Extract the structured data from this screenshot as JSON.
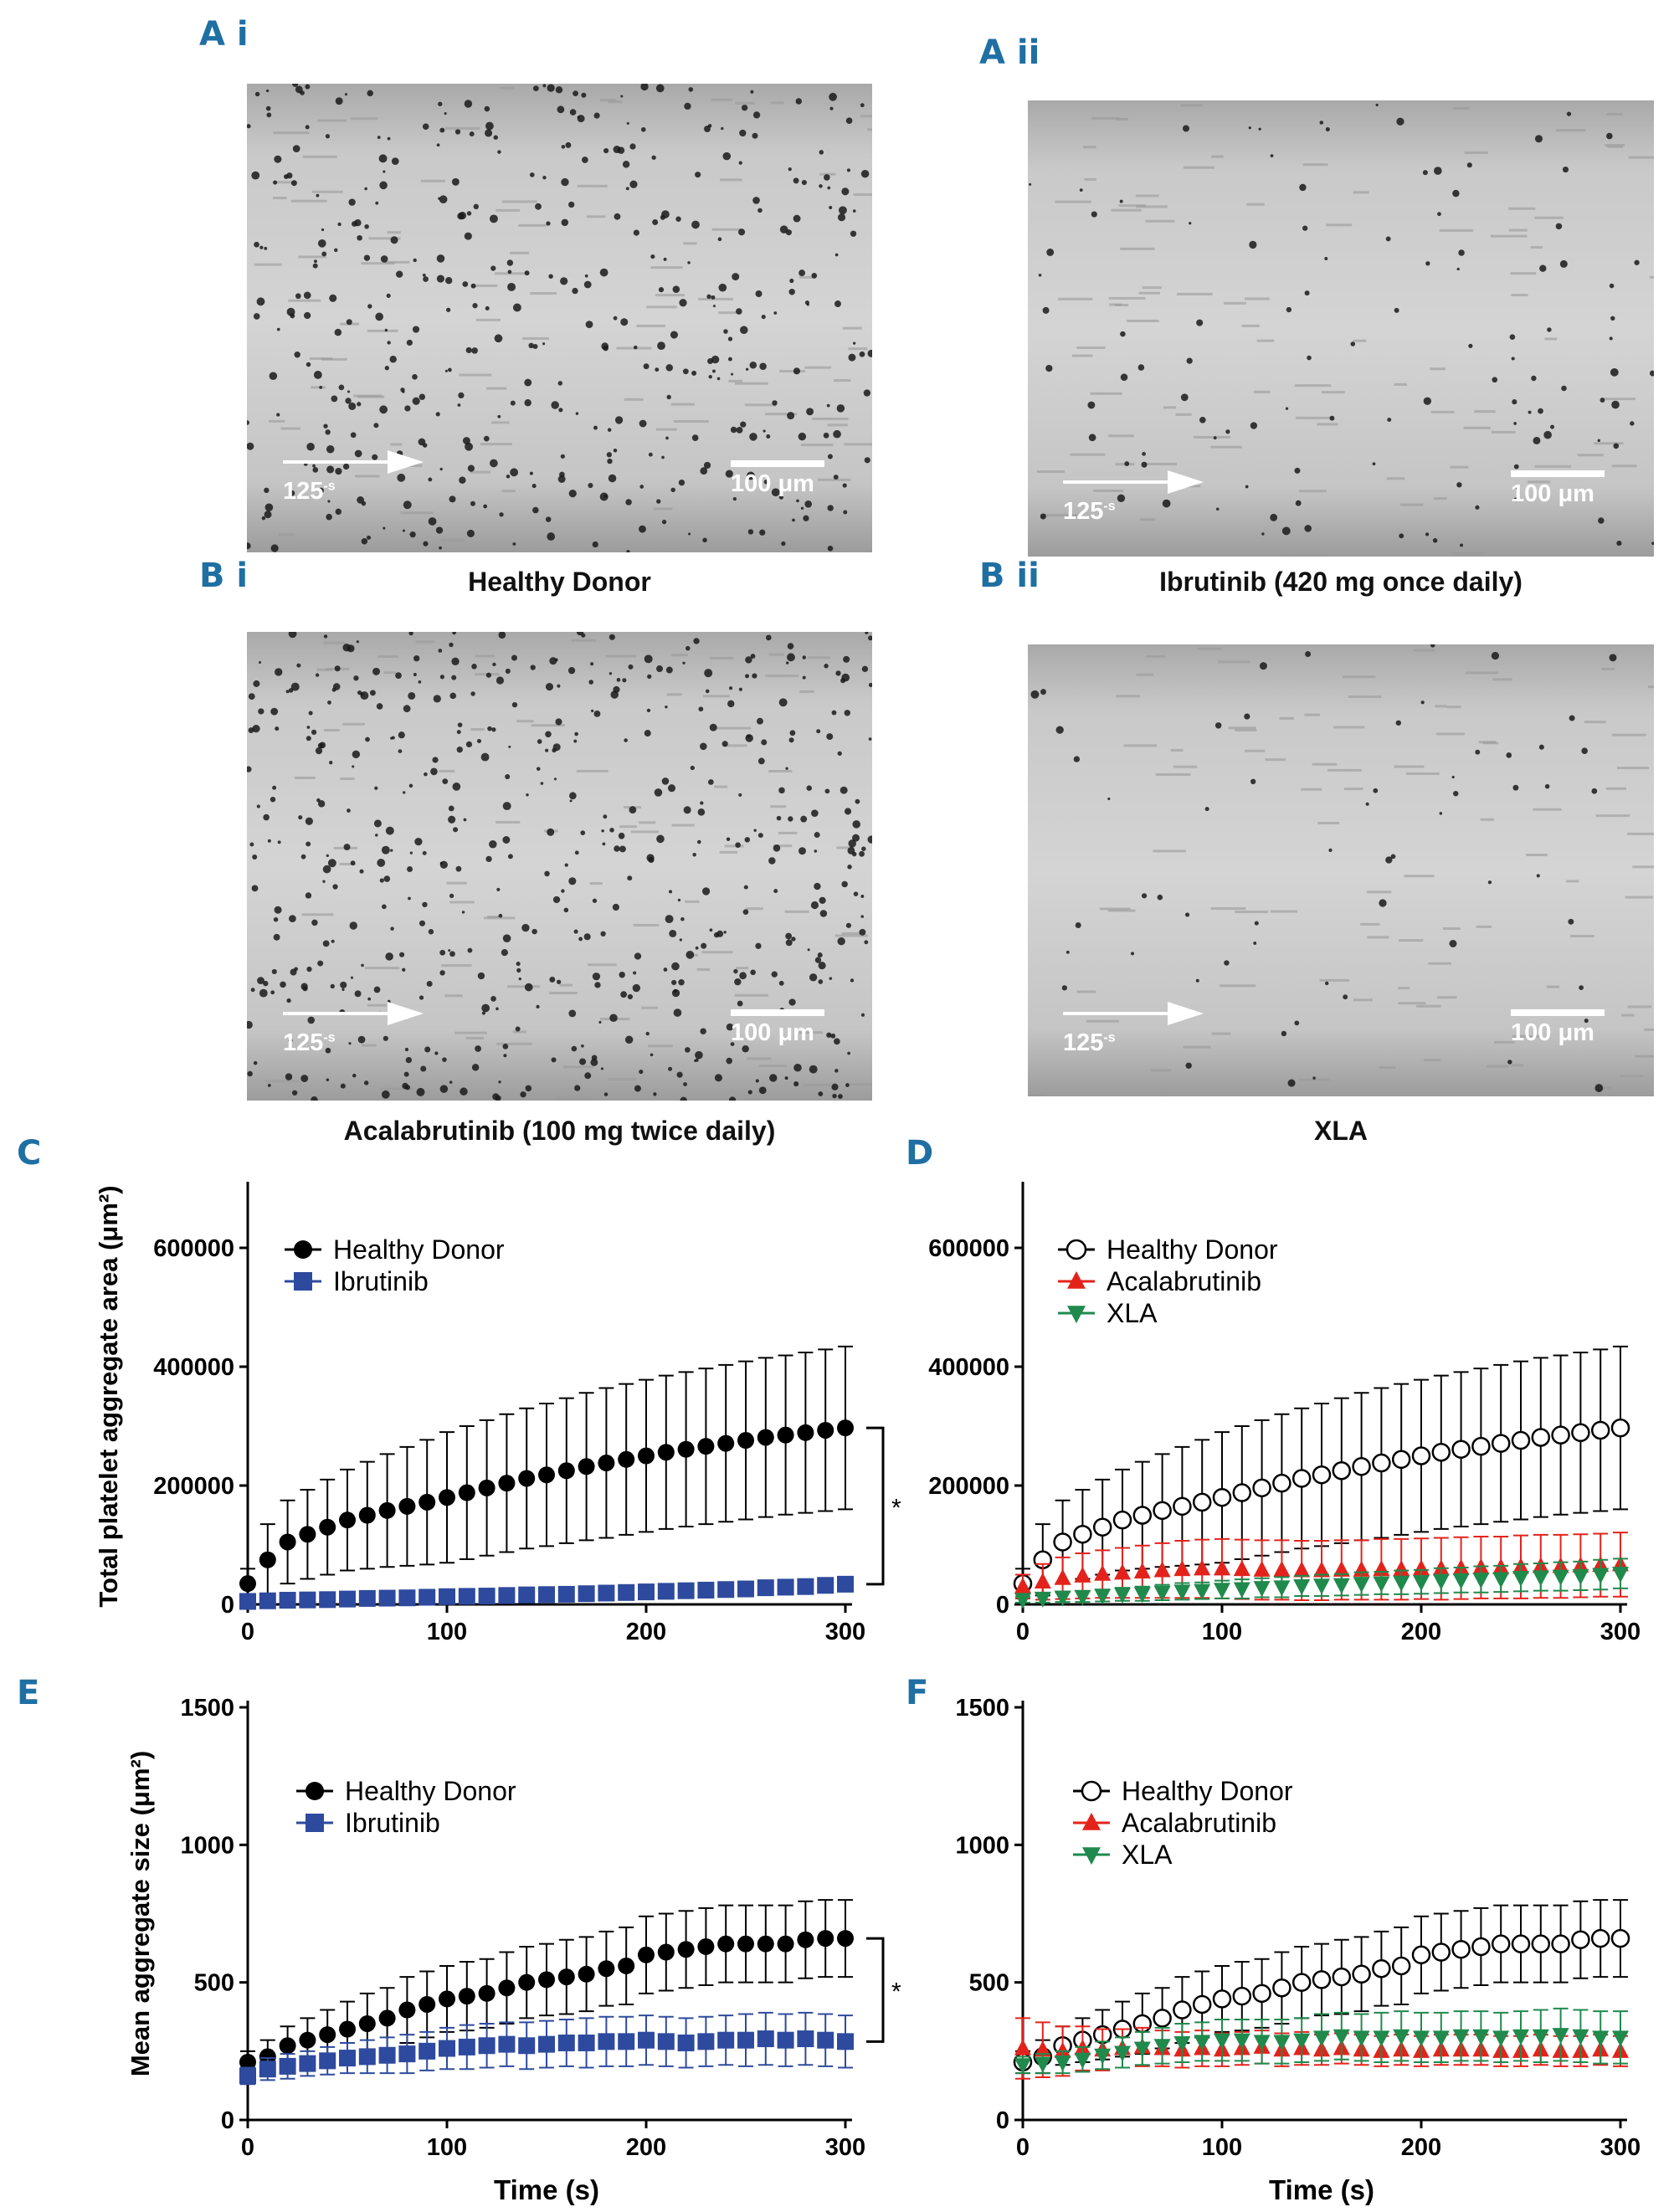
{
  "panels": {
    "ai": {
      "letter": "A i",
      "caption": "Healthy Donor"
    },
    "aii": {
      "letter": "A ii",
      "caption": "Ibrutinib (420 mg once daily)"
    },
    "bi": {
      "letter": "B i",
      "caption": "Acalabrutinib (100 mg twice daily)"
    },
    "bii": {
      "letter": "B ii",
      "caption": "XLA"
    },
    "c": {
      "letter": "C"
    },
    "d": {
      "letter": "D"
    },
    "e": {
      "letter": "E"
    },
    "f": {
      "letter": "F"
    }
  },
  "micrograph": {
    "shear_label": "125",
    "shear_unit": "-s",
    "scale_label": "100 μm"
  },
  "colors": {
    "panel_letter": "#1f6fa3",
    "healthy": "#000000",
    "ibrutinib": "#2e4a9e",
    "acalabrutinib": "#e3231b",
    "xla": "#1f8a4c"
  },
  "chart_data": [
    {
      "id": "C",
      "type": "line",
      "title": "",
      "xlabel": "",
      "ylabel": "Total platelet aggregate area (μm²)",
      "xlim": [
        0,
        300
      ],
      "ylim": [
        0,
        700000
      ],
      "xticks": [
        0,
        100,
        200,
        300
      ],
      "yticks": [
        0,
        200000,
        400000,
        600000
      ],
      "ytick_labels": [
        "0",
        "200000",
        "400000",
        "600000"
      ],
      "legend": "top-left",
      "significance": "*",
      "x": [
        0,
        10,
        20,
        30,
        40,
        50,
        60,
        70,
        80,
        90,
        100,
        110,
        120,
        130,
        140,
        150,
        160,
        170,
        180,
        190,
        200,
        210,
        220,
        230,
        240,
        250,
        260,
        270,
        280,
        290,
        300
      ],
      "series": [
        {
          "name": "Healthy Donor",
          "marker": "circle-filled",
          "color": "#000000",
          "values": [
            35000,
            75000,
            105000,
            118000,
            130000,
            142000,
            150000,
            158000,
            165000,
            172000,
            180000,
            188000,
            196000,
            204000,
            212000,
            218000,
            225000,
            232000,
            238000,
            244000,
            250000,
            256000,
            261000,
            266000,
            271000,
            276000,
            281000,
            285000,
            289000,
            293000,
            297000
          ],
          "error": [
            25000,
            60000,
            70000,
            75000,
            80000,
            85000,
            90000,
            95000,
            100000,
            105000,
            110000,
            112000,
            114000,
            116000,
            118000,
            120000,
            122000,
            124000,
            126000,
            127000,
            128000,
            129000,
            130000,
            131000,
            132000,
            133000,
            134000,
            134000,
            135000,
            136000,
            137000
          ]
        },
        {
          "name": "Ibrutinib",
          "marker": "square-filled",
          "color": "#2e4a9e",
          "values": [
            5000,
            6000,
            7000,
            7500,
            8000,
            9000,
            10000,
            10500,
            11000,
            12000,
            13000,
            13500,
            14000,
            15000,
            16000,
            16500,
            17000,
            18000,
            19000,
            20000,
            21000,
            22000,
            23000,
            24000,
            25000,
            26000,
            28000,
            29000,
            30000,
            32000,
            34000
          ],
          "error": [
            2000,
            2000,
            2000,
            2000,
            3000,
            3000,
            3000,
            3000,
            3000,
            4000,
            4000,
            4000,
            4000,
            4000,
            5000,
            5000,
            5000,
            5000,
            6000,
            6000,
            6000,
            6000,
            7000,
            7000,
            7000,
            7000,
            8000,
            8000,
            8000,
            8000,
            9000
          ]
        }
      ]
    },
    {
      "id": "D",
      "type": "line",
      "title": "",
      "xlabel": "",
      "ylabel": "",
      "xlim": [
        0,
        300
      ],
      "ylim": [
        0,
        700000
      ],
      "xticks": [
        0,
        100,
        200,
        300
      ],
      "yticks": [
        0,
        200000,
        400000,
        600000
      ],
      "ytick_labels": [
        "0",
        "200000",
        "400000",
        "600000"
      ],
      "legend": "top-left",
      "x": [
        0,
        10,
        20,
        30,
        40,
        50,
        60,
        70,
        80,
        90,
        100,
        110,
        120,
        130,
        140,
        150,
        160,
        170,
        180,
        190,
        200,
        210,
        220,
        230,
        240,
        250,
        260,
        270,
        280,
        290,
        300
      ],
      "series": [
        {
          "name": "Healthy Donor",
          "marker": "circle-open",
          "color": "#000000",
          "values": [
            35000,
            75000,
            105000,
            118000,
            130000,
            142000,
            150000,
            158000,
            165000,
            172000,
            180000,
            188000,
            196000,
            204000,
            212000,
            218000,
            225000,
            232000,
            238000,
            244000,
            250000,
            256000,
            261000,
            266000,
            271000,
            276000,
            281000,
            285000,
            289000,
            293000,
            297000
          ],
          "error": [
            25000,
            60000,
            70000,
            75000,
            80000,
            85000,
            90000,
            95000,
            100000,
            105000,
            110000,
            112000,
            114000,
            116000,
            118000,
            120000,
            122000,
            124000,
            126000,
            127000,
            128000,
            129000,
            130000,
            131000,
            132000,
            133000,
            134000,
            134000,
            135000,
            136000,
            137000
          ]
        },
        {
          "name": "Acalabrutinib",
          "marker": "triangle-up",
          "color": "#e3231b",
          "values": [
            30000,
            38000,
            44000,
            48000,
            51000,
            53000,
            55000,
            57000,
            59000,
            60000,
            60000,
            59000,
            58000,
            58000,
            57000,
            57000,
            58000,
            58000,
            59000,
            59000,
            60000,
            60000,
            61000,
            62000,
            62000,
            63000,
            64000,
            64000,
            65000,
            66000,
            67000
          ],
          "error": [
            20000,
            30000,
            35000,
            38000,
            40000,
            42000,
            44000,
            46000,
            48000,
            49000,
            50000,
            50000,
            50000,
            50000,
            50000,
            50000,
            50000,
            50000,
            51000,
            51000,
            51000,
            52000,
            52000,
            52000,
            52000,
            53000,
            53000,
            53000,
            53000,
            53000,
            54000
          ]
        },
        {
          "name": "XLA",
          "marker": "triangle-down",
          "color": "#1f8a4c",
          "values": [
            8000,
            10000,
            12000,
            13000,
            15000,
            17000,
            18000,
            20000,
            22000,
            23000,
            25000,
            26000,
            28000,
            29000,
            31000,
            32000,
            33000,
            35000,
            36000,
            37000,
            38000,
            40000,
            41000,
            42000,
            43000,
            45000,
            46000,
            47000,
            48000,
            50000,
            52000
          ],
          "error": [
            5000,
            7000,
            8000,
            9000,
            10000,
            11000,
            12000,
            13000,
            14000,
            14000,
            15000,
            16000,
            16000,
            17000,
            17000,
            18000,
            18000,
            19000,
            19000,
            20000,
            20000,
            21000,
            21000,
            22000,
            22000,
            23000,
            23000,
            24000,
            24000,
            25000,
            25000
          ]
        }
      ]
    },
    {
      "id": "E",
      "type": "line",
      "title": "",
      "xlabel": "Time (s)",
      "ylabel": "Mean aggregate size (μm²)",
      "xlim": [
        0,
        300
      ],
      "ylim": [
        0,
        1500
      ],
      "xticks": [
        0,
        100,
        200,
        300
      ],
      "yticks": [
        0,
        500,
        1000,
        1500
      ],
      "ytick_labels": [
        "0",
        "500",
        "1000",
        "1500"
      ],
      "legend": "top-left",
      "significance": "*",
      "x": [
        0,
        10,
        20,
        30,
        40,
        50,
        60,
        70,
        80,
        90,
        100,
        110,
        120,
        130,
        140,
        150,
        160,
        170,
        180,
        190,
        200,
        210,
        220,
        230,
        240,
        250,
        260,
        270,
        280,
        290,
        300
      ],
      "series": [
        {
          "name": "Healthy Donor",
          "marker": "circle-filled",
          "color": "#000000",
          "values": [
            210,
            230,
            270,
            290,
            310,
            330,
            350,
            370,
            400,
            420,
            440,
            450,
            460,
            480,
            500,
            510,
            520,
            530,
            550,
            560,
            600,
            610,
            620,
            630,
            640,
            640,
            640,
            640,
            655,
            660,
            660
          ],
          "error": [
            40,
            60,
            70,
            80,
            90,
            100,
            110,
            110,
            120,
            120,
            120,
            125,
            125,
            130,
            130,
            130,
            135,
            135,
            135,
            140,
            140,
            140,
            140,
            140,
            140,
            140,
            140,
            140,
            140,
            140,
            140
          ]
        },
        {
          "name": "Ibrutinib",
          "marker": "square-filled",
          "color": "#2e4a9e",
          "values": [
            160,
            185,
            195,
            205,
            215,
            225,
            230,
            235,
            240,
            250,
            260,
            265,
            270,
            275,
            270,
            275,
            280,
            280,
            285,
            285,
            290,
            285,
            280,
            285,
            290,
            290,
            295,
            290,
            295,
            290,
            285
          ],
          "error": [
            30,
            40,
            45,
            45,
            50,
            55,
            60,
            65,
            70,
            70,
            75,
            80,
            80,
            80,
            85,
            85,
            85,
            90,
            90,
            90,
            90,
            90,
            90,
            90,
            90,
            95,
            95,
            95,
            95,
            95,
            95
          ]
        }
      ]
    },
    {
      "id": "F",
      "type": "line",
      "title": "",
      "xlabel": "Time (s)",
      "ylabel": "",
      "xlim": [
        0,
        300
      ],
      "ylim": [
        0,
        1500
      ],
      "xticks": [
        0,
        100,
        200,
        300
      ],
      "yticks": [
        0,
        500,
        1000,
        1500
      ],
      "ytick_labels": [
        "0",
        "500",
        "1000",
        "1500"
      ],
      "legend": "top-left",
      "x": [
        0,
        10,
        20,
        30,
        40,
        50,
        60,
        70,
        80,
        90,
        100,
        110,
        120,
        130,
        140,
        150,
        160,
        170,
        180,
        190,
        200,
        210,
        220,
        230,
        240,
        250,
        260,
        270,
        280,
        290,
        300
      ],
      "series": [
        {
          "name": "Healthy Donor",
          "marker": "circle-open",
          "color": "#000000",
          "values": [
            210,
            230,
            270,
            290,
            310,
            330,
            350,
            370,
            400,
            420,
            440,
            450,
            460,
            480,
            500,
            510,
            520,
            530,
            550,
            560,
            600,
            610,
            620,
            630,
            640,
            640,
            640,
            640,
            655,
            660,
            660
          ],
          "error": [
            40,
            60,
            70,
            80,
            90,
            100,
            110,
            110,
            120,
            120,
            120,
            125,
            125,
            130,
            130,
            130,
            135,
            135,
            135,
            140,
            140,
            140,
            140,
            140,
            140,
            140,
            140,
            140,
            140,
            140,
            140
          ]
        },
        {
          "name": "Acalabrutinib",
          "marker": "triangle-up",
          "color": "#e3231b",
          "values": [
            260,
            255,
            250,
            260,
            255,
            260,
            265,
            260,
            255,
            260,
            255,
            260,
            265,
            255,
            260,
            255,
            260,
            255,
            250,
            255,
            250,
            255,
            255,
            255,
            250,
            250,
            255,
            250,
            250,
            255,
            250
          ],
          "error": [
            110,
            100,
            90,
            80,
            75,
            70,
            70,
            65,
            65,
            65,
            60,
            60,
            60,
            60,
            60,
            55,
            55,
            55,
            55,
            55,
            55,
            55,
            55,
            55,
            55,
            55,
            55,
            55,
            55,
            55,
            55
          ]
        },
        {
          "name": "XLA",
          "marker": "triangle-down",
          "color": "#1f8a4c",
          "values": [
            200,
            205,
            210,
            220,
            235,
            245,
            260,
            270,
            280,
            285,
            290,
            290,
            285,
            285,
            290,
            300,
            305,
            300,
            300,
            305,
            300,
            300,
            305,
            305,
            300,
            305,
            305,
            310,
            305,
            300,
            300
          ],
          "error": [
            30,
            35,
            40,
            45,
            50,
            55,
            60,
            65,
            70,
            70,
            75,
            75,
            80,
            80,
            80,
            85,
            85,
            85,
            90,
            90,
            90,
            90,
            90,
            90,
            90,
            90,
            95,
            95,
            95,
            95,
            95
          ]
        }
      ]
    }
  ]
}
